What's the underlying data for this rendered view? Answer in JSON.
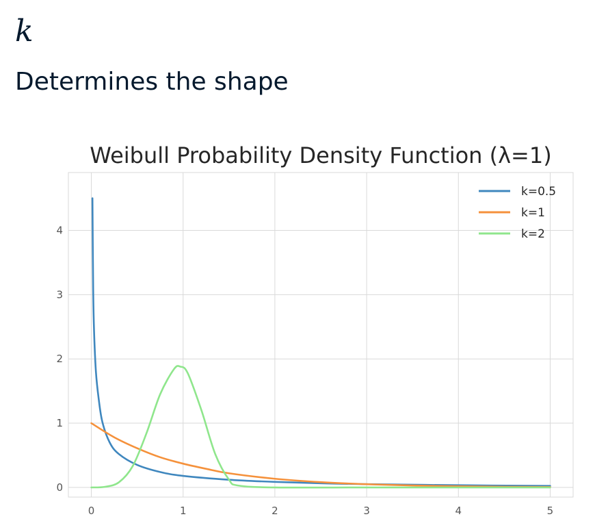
{
  "header": {
    "symbol": "k",
    "description": "Determines the shape"
  },
  "colors": {
    "text": "#05192d",
    "grid": "#d9d9d9",
    "series_k05": "#3f87be",
    "series_k1": "#f5913b",
    "series_k2": "#8fe68c"
  },
  "chart_data": {
    "type": "line",
    "title": "Weibull Probability Density Function (λ=1)",
    "xlabel": "",
    "ylabel": "",
    "xlim": [
      -0.25,
      5.25
    ],
    "ylim": [
      -0.15,
      4.9
    ],
    "x_ticks": [
      "0",
      "1",
      "2",
      "3",
      "4",
      "5"
    ],
    "y_ticks": [
      "0",
      "1",
      "2",
      "3",
      "4"
    ],
    "grid": true,
    "legend_position": "top-right",
    "series": [
      {
        "name": "k=0.5",
        "color": "#3f87be",
        "x": [
          0.012,
          0.02,
          0.03,
          0.05,
          0.08,
          0.12,
          0.2,
          0.3,
          0.5,
          0.75,
          1.0,
          1.5,
          2.0,
          2.5,
          3.0,
          4.0,
          5.0
        ],
        "y": [
          4.5,
          3.08,
          2.42,
          1.8,
          1.38,
          1.02,
          0.7,
          0.52,
          0.35,
          0.24,
          0.18,
          0.12,
          0.086,
          0.065,
          0.051,
          0.034,
          0.024
        ]
      },
      {
        "name": "k=1",
        "color": "#f5913b",
        "x": [
          0.0,
          0.25,
          0.5,
          0.75,
          1.0,
          1.25,
          1.5,
          2.0,
          2.5,
          3.0,
          3.5,
          4.0,
          4.5,
          5.0
        ],
        "y": [
          1.0,
          0.78,
          0.61,
          0.47,
          0.37,
          0.29,
          0.22,
          0.135,
          0.082,
          0.05,
          0.03,
          0.018,
          0.011,
          0.007
        ]
      },
      {
        "name": "k=2",
        "color": "#8fe68c",
        "x": [
          0.0,
          0.15,
          0.3,
          0.45,
          0.6,
          0.75,
          0.9,
          0.97,
          1.05,
          1.2,
          1.35,
          1.5,
          1.6,
          2.0,
          3.0,
          4.0,
          5.0
        ],
        "y": [
          0.0,
          0.01,
          0.08,
          0.33,
          0.84,
          1.45,
          1.84,
          1.88,
          1.78,
          1.2,
          0.52,
          0.12,
          0.03,
          0.0,
          0.0,
          0.0,
          0.0
        ]
      }
    ]
  }
}
